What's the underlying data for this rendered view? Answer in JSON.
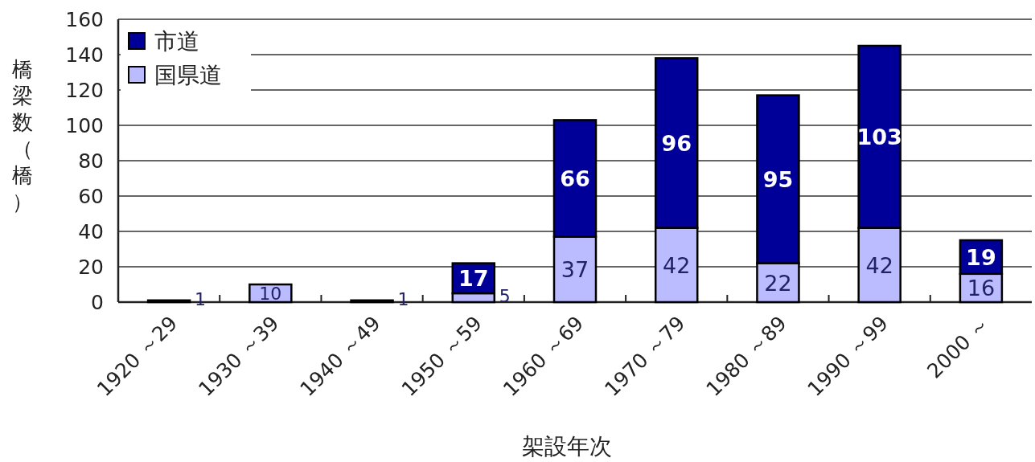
{
  "chart_data": {
    "type": "bar",
    "stacked": true,
    "categories": [
      "1920 ～29",
      "1930 ～39",
      "1940 ～49",
      "1950 ～59",
      "1960 ～69",
      "1970 ～79",
      "1980 ～89",
      "1990 ～99",
      "2000 ～"
    ],
    "series": [
      {
        "name": "国県道",
        "color": "#bbbbff",
        "values": [
          1,
          10,
          1,
          5,
          37,
          42,
          22,
          42,
          16
        ],
        "value_labels": [
          "1",
          "10",
          "1",
          "5",
          "37",
          "42",
          "22",
          "42",
          "16"
        ]
      },
      {
        "name": "市道",
        "color": "#000099",
        "values": [
          0,
          0,
          0,
          17,
          66,
          96,
          95,
          103,
          19
        ],
        "value_labels": [
          null,
          null,
          null,
          "17",
          "66",
          "96",
          "95",
          "103",
          "19"
        ]
      }
    ],
    "ylim": [
      0,
      160
    ],
    "yticks": [
      0,
      20,
      40,
      60,
      80,
      100,
      120,
      140,
      160
    ],
    "grid": "y",
    "legend": "top left",
    "xlabel": "架設年次",
    "ylabel": "橋梁数（橋）"
  }
}
